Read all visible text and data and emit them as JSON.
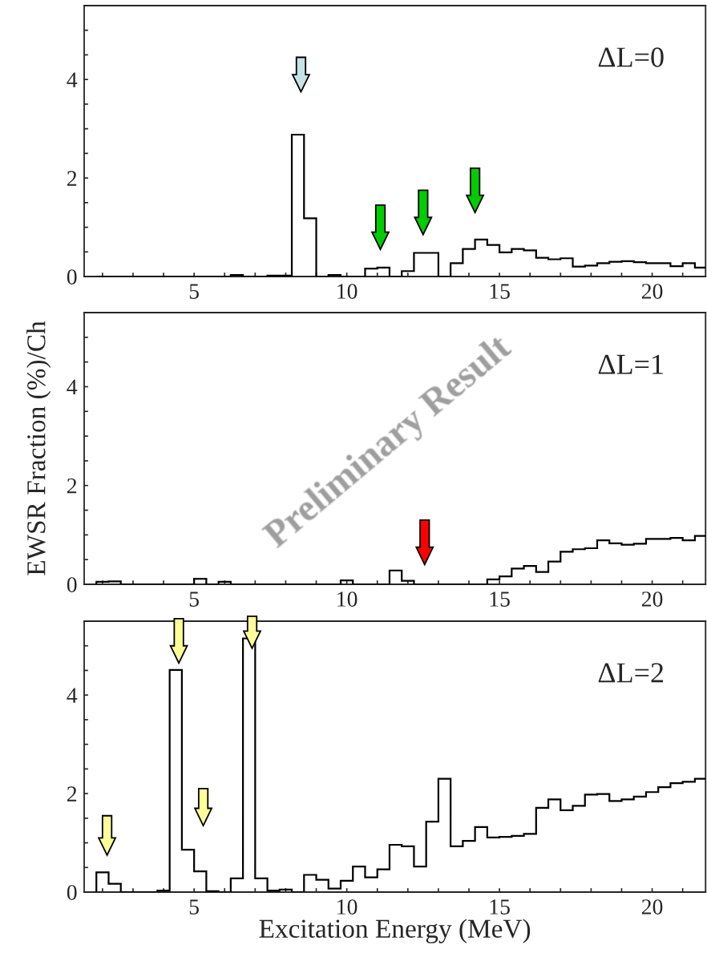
{
  "chart_data": [
    {
      "type": "histogram",
      "annotations": [
        "ΔL=0"
      ],
      "xlim": [
        1.4,
        21.75
      ],
      "ylim": [
        0,
        5.5
      ],
      "xticks": [
        {
          "value": 2,
          "label": null
        },
        {
          "value": 3,
          "label": null
        },
        {
          "value": 4,
          "label": null
        },
        5,
        {
          "value": 6,
          "label": null
        },
        {
          "value": 7,
          "label": null
        },
        {
          "value": 8,
          "label": null
        },
        {
          "value": 9,
          "label": null
        },
        10,
        {
          "value": 11,
          "label": null
        },
        {
          "value": 12,
          "label": null
        },
        {
          "value": 13,
          "label": null
        },
        {
          "value": 14,
          "label": null
        },
        15,
        {
          "value": 16,
          "label": null
        },
        {
          "value": 17,
          "label": null
        },
        {
          "value": 18,
          "label": null
        },
        {
          "value": 19,
          "label": null
        },
        20,
        {
          "value": 21,
          "label": null
        }
      ],
      "yticks": [
        0,
        {
          "value": 0.5,
          "label": null
        },
        {
          "value": 1,
          "label": null
        },
        {
          "value": 1.5,
          "label": null
        },
        2,
        {
          "value": 2.5,
          "label": null
        },
        {
          "value": 3,
          "label": null
        },
        {
          "value": 3.5,
          "label": null
        },
        4,
        {
          "value": 4.5,
          "label": null
        },
        {
          "value": 5,
          "label": null
        }
      ],
      "bins": [
        1.8,
        2.2,
        2.6,
        3.0,
        3.4,
        3.8,
        4.2,
        4.6,
        5.0,
        5.4,
        5.8,
        6.2,
        6.6,
        7.0,
        7.4,
        7.8,
        8.2,
        8.6,
        9.0,
        9.4,
        9.8,
        10.2,
        10.6,
        11.0,
        11.4,
        11.8,
        12.2,
        12.6,
        13.0,
        13.4,
        13.8,
        14.2,
        14.6,
        15.0,
        15.4,
        15.8,
        16.2,
        16.6,
        17.0,
        17.4,
        17.8,
        18.2,
        18.6,
        19.0,
        19.4,
        19.8,
        20.2,
        20.6,
        21.0,
        21.4,
        21.8
      ],
      "values": [
        0,
        0,
        0,
        0,
        0,
        0,
        0,
        0,
        0,
        0,
        0,
        0.03,
        0,
        0,
        0.02,
        0.02,
        2.88,
        1.18,
        0,
        0.03,
        0,
        0,
        0.16,
        0.18,
        0,
        0.11,
        0.48,
        0.48,
        0,
        0.27,
        0.56,
        0.75,
        0.64,
        0.49,
        0.56,
        0.53,
        0.38,
        0.35,
        0.37,
        0.2,
        0.22,
        0.27,
        0.3,
        0.31,
        0.29,
        0.27,
        0.27,
        0.21,
        0.27,
        0.18
      ],
      "color": "#000000"
    },
    {
      "type": "histogram",
      "annotations": [
        "ΔL=1",
        "Preliminary Result"
      ],
      "ylabel": "EWSR Fraction (%)/Ch",
      "xlim": [
        1.4,
        21.75
      ],
      "ylim": [
        0,
        5.5
      ],
      "xticks": [
        {
          "value": 2,
          "label": null
        },
        {
          "value": 3,
          "label": null
        },
        {
          "value": 4,
          "label": null
        },
        5,
        {
          "value": 6,
          "label": null
        },
        {
          "value": 7,
          "label": null
        },
        {
          "value": 8,
          "label": null
        },
        {
          "value": 9,
          "label": null
        },
        10,
        {
          "value": 11,
          "label": null
        },
        {
          "value": 12,
          "label": null
        },
        {
          "value": 13,
          "label": null
        },
        {
          "value": 14,
          "label": null
        },
        15,
        {
          "value": 16,
          "label": null
        },
        {
          "value": 17,
          "label": null
        },
        {
          "value": 18,
          "label": null
        },
        {
          "value": 19,
          "label": null
        },
        20,
        {
          "value": 21,
          "label": null
        }
      ],
      "yticks": [
        0,
        {
          "value": 0.5,
          "label": null
        },
        {
          "value": 1,
          "label": null
        },
        {
          "value": 1.5,
          "label": null
        },
        2,
        {
          "value": 2.5,
          "label": null
        },
        {
          "value": 3,
          "label": null
        },
        {
          "value": 3.5,
          "label": null
        },
        4,
        {
          "value": 4.5,
          "label": null
        },
        {
          "value": 5,
          "label": null
        }
      ],
      "bins": [
        1.8,
        2.2,
        2.6,
        3.0,
        3.4,
        3.8,
        4.2,
        4.6,
        5.0,
        5.4,
        5.8,
        6.2,
        6.6,
        7.0,
        7.4,
        7.8,
        8.2,
        8.6,
        9.0,
        9.4,
        9.8,
        10.2,
        10.6,
        11.0,
        11.4,
        11.8,
        12.2,
        12.6,
        13.0,
        13.4,
        13.8,
        14.2,
        14.6,
        15.0,
        15.4,
        15.8,
        16.2,
        16.6,
        17.0,
        17.4,
        17.8,
        18.2,
        18.6,
        19.0,
        19.4,
        19.8,
        20.2,
        20.6,
        21.0,
        21.4,
        21.8
      ],
      "values": [
        0.05,
        0.06,
        0,
        0,
        0,
        0,
        0,
        0,
        0.11,
        0,
        0.05,
        0,
        0,
        0,
        0,
        0,
        0,
        0,
        0,
        0,
        0.08,
        0,
        0,
        0,
        0.28,
        0.07,
        0,
        0,
        0,
        0,
        0,
        0,
        0.1,
        0.16,
        0.32,
        0.37,
        0.25,
        0.46,
        0.66,
        0.71,
        0.73,
        0.89,
        0.83,
        0.8,
        0.82,
        0.92,
        0.92,
        0.94,
        0.89,
        0.98
      ],
      "color": "#000000"
    },
    {
      "type": "histogram",
      "annotations": [
        "ΔL=2"
      ],
      "xlabel": "Excitation Energy (MeV)",
      "xlim": [
        1.4,
        21.75
      ],
      "ylim": [
        0,
        5.5
      ],
      "xticks": [
        {
          "value": 2,
          "label": null
        },
        {
          "value": 3,
          "label": null
        },
        {
          "value": 4,
          "label": null
        },
        5,
        {
          "value": 6,
          "label": null
        },
        {
          "value": 7,
          "label": null
        },
        {
          "value": 8,
          "label": null
        },
        {
          "value": 9,
          "label": null
        },
        10,
        {
          "value": 11,
          "label": null
        },
        {
          "value": 12,
          "label": null
        },
        {
          "value": 13,
          "label": null
        },
        {
          "value": 14,
          "label": null
        },
        15,
        {
          "value": 16,
          "label": null
        },
        {
          "value": 17,
          "label": null
        },
        {
          "value": 18,
          "label": null
        },
        {
          "value": 19,
          "label": null
        },
        20,
        {
          "value": 21,
          "label": null
        }
      ],
      "yticks": [
        0,
        {
          "value": 0.5,
          "label": null
        },
        {
          "value": 1,
          "label": null
        },
        {
          "value": 1.5,
          "label": null
        },
        2,
        {
          "value": 2.5,
          "label": null
        },
        {
          "value": 3,
          "label": null
        },
        {
          "value": 3.5,
          "label": null
        },
        4,
        {
          "value": 4.5,
          "label": null
        },
        {
          "value": 5,
          "label": null
        }
      ],
      "bins": [
        1.8,
        2.2,
        2.6,
        3.0,
        3.4,
        3.8,
        4.2,
        4.6,
        5.0,
        5.4,
        5.8,
        6.2,
        6.6,
        7.0,
        7.4,
        7.8,
        8.2,
        8.6,
        9.0,
        9.4,
        9.8,
        10.2,
        10.6,
        11.0,
        11.4,
        11.8,
        12.2,
        12.6,
        13.0,
        13.4,
        13.8,
        14.2,
        14.6,
        15.0,
        15.4,
        15.8,
        16.2,
        16.6,
        17.0,
        17.4,
        17.8,
        18.2,
        18.6,
        19.0,
        19.4,
        19.8,
        20.2,
        20.6,
        21.0,
        21.4,
        21.8
      ],
      "values": [
        0.4,
        0.17,
        0,
        0,
        0,
        0.03,
        4.51,
        0.86,
        0.42,
        0.02,
        0,
        0.28,
        5.15,
        0.28,
        0.03,
        0.05,
        0,
        0.35,
        0.25,
        0.07,
        0.23,
        0.52,
        0.3,
        0.46,
        0.96,
        0.93,
        0.52,
        1.43,
        2.3,
        0.93,
        1.04,
        1.32,
        1.11,
        1.12,
        1.14,
        1.18,
        1.71,
        1.88,
        1.66,
        1.75,
        1.98,
        1.99,
        1.85,
        1.88,
        1.94,
        2.03,
        2.13,
        2.21,
        2.24,
        2.3
      ],
      "color": "#000000"
    }
  ]
}
